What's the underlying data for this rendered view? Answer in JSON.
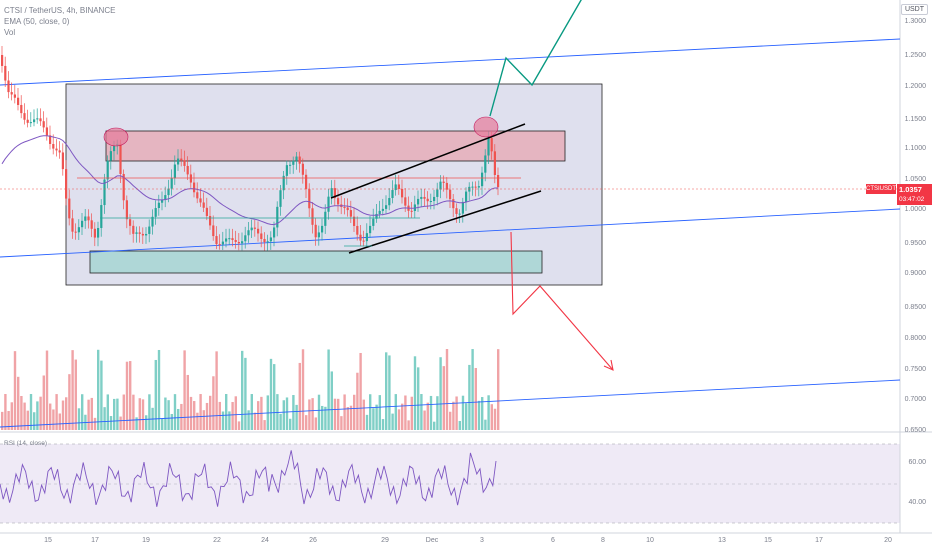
{
  "header": {
    "symbol_line": "CTSI / TetherUS, 4h, BINANCE",
    "ema_line": "EMA (50, close, 0)",
    "vol_line": "Vol"
  },
  "currency": "USDT",
  "price_axis": [
    "1.3000",
    "1.2500",
    "1.2000",
    "1.1500",
    "1.1000",
    "1.0500",
    "1.0000",
    "0.9500",
    "0.9000",
    "0.8500",
    "0.8000",
    "0.7500",
    "0.7000",
    "0.6500"
  ],
  "symbol_tag": {
    "name": "CTSIUSDT",
    "price": "1.0357",
    "timer": "03:47:02"
  },
  "date_axis": [
    "15",
    "17",
    "19",
    "22",
    "24",
    "26",
    "29",
    "Dec",
    "3",
    "6",
    "8",
    "10",
    "13",
    "15",
    "17",
    "20"
  ],
  "rsi": {
    "title": "RSI (14, close)",
    "axis": [
      "60.00",
      "40.00"
    ]
  },
  "colors": {
    "up": "#26a69a",
    "down": "#ef5350",
    "ema": "#7e57c2",
    "trend": "#2962ff"
  }
}
